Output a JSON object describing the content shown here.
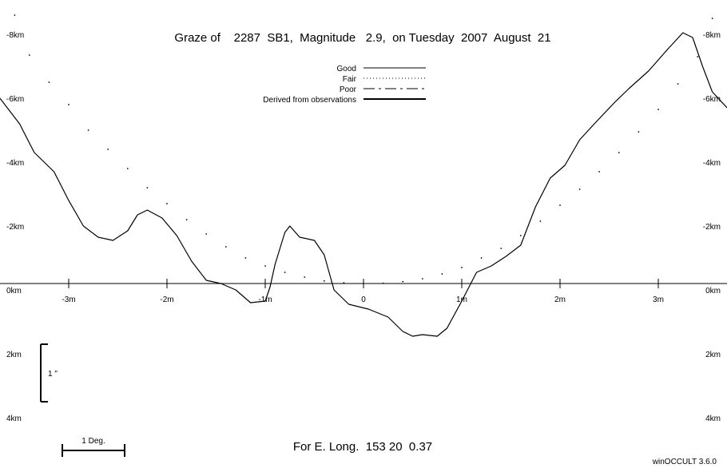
{
  "title": "Graze of    2287  SB1,  Magnitude   2.9,  on Tuesday  2007  August  21",
  "legend": [
    {
      "label": "Good",
      "style": "solid"
    },
    {
      "label": "Fair",
      "style": "dotted"
    },
    {
      "label": "Poor",
      "style": "dashed"
    },
    {
      "label": "Derived from observations",
      "style": "thick"
    }
  ],
  "footer": {
    "longitude": "For E. Long.  153 20  0.37",
    "credit": "winOCCULT 3.6.0"
  },
  "scale": {
    "vertical_label": "1 \"",
    "horizontal_label": "1 Deg."
  },
  "chart_data": {
    "type": "line",
    "xlabel": "",
    "ylabel": "",
    "x_unit": "min",
    "y_unit": "km",
    "xlim": [
      -3.7,
      3.7
    ],
    "ylim": [
      -8.5,
      6
    ],
    "grid": false,
    "y_tick_labels_left": [
      {
        "value": -8,
        "label": "-8km"
      },
      {
        "value": -6,
        "label": "-6km"
      },
      {
        "value": -4,
        "label": "-4km"
      },
      {
        "value": -2,
        "label": "-2km"
      },
      {
        "value": 0,
        "label": "0km"
      },
      {
        "value": 2,
        "label": "2km"
      },
      {
        "value": 4,
        "label": "4km"
      }
    ],
    "y_tick_labels_right": [
      {
        "value": -8,
        "label": "-8km"
      },
      {
        "value": -6,
        "label": "-6km"
      },
      {
        "value": -4,
        "label": "-4km"
      },
      {
        "value": -2,
        "label": "-2km"
      },
      {
        "value": 0,
        "label": "0km"
      },
      {
        "value": 2,
        "label": "2km"
      },
      {
        "value": 4,
        "label": "4km"
      }
    ],
    "x_tick_labels": [
      {
        "value": -3,
        "label": "-3m"
      },
      {
        "value": -2,
        "label": "-2m"
      },
      {
        "value": -1,
        "label": "-1m"
      },
      {
        "value": 0,
        "label": "0"
      },
      {
        "value": 1,
        "label": "1m"
      },
      {
        "value": 2,
        "label": "2m"
      },
      {
        "value": 3,
        "label": "3m"
      }
    ],
    "series": [
      {
        "name": "Fair",
        "style": "dotted",
        "points": [
          [
            -3.55,
            -8.4
          ],
          [
            -3.4,
            -7.15
          ],
          [
            -3.2,
            -6.3
          ],
          [
            -3.0,
            -5.6
          ],
          [
            -2.8,
            -4.8
          ],
          [
            -2.6,
            -4.2
          ],
          [
            -2.4,
            -3.6
          ],
          [
            -2.2,
            -3.0
          ],
          [
            -2.0,
            -2.5
          ],
          [
            -1.8,
            -2.0
          ],
          [
            -1.6,
            -1.55
          ],
          [
            -1.4,
            -1.15
          ],
          [
            -1.2,
            -0.8
          ],
          [
            -1.0,
            -0.55
          ],
          [
            -0.8,
            -0.35
          ],
          [
            -0.6,
            -0.2
          ],
          [
            -0.4,
            -0.08
          ],
          [
            -0.2,
            -0.02
          ],
          [
            0.0,
            0.0
          ],
          [
            0.2,
            -0.01
          ],
          [
            0.4,
            -0.06
          ],
          [
            0.6,
            -0.15
          ],
          [
            0.8,
            -0.3
          ],
          [
            1.0,
            -0.5
          ],
          [
            1.2,
            -0.8
          ],
          [
            1.4,
            -1.1
          ],
          [
            1.6,
            -1.5
          ],
          [
            1.8,
            -1.95
          ],
          [
            2.0,
            -2.45
          ],
          [
            2.2,
            -2.95
          ],
          [
            2.4,
            -3.5
          ],
          [
            2.6,
            -4.1
          ],
          [
            2.8,
            -4.75
          ],
          [
            3.0,
            -5.45
          ],
          [
            3.2,
            -6.25
          ],
          [
            3.4,
            -7.1
          ],
          [
            3.55,
            -8.3
          ]
        ]
      },
      {
        "name": "Derived from observations",
        "style": "solid",
        "points": [
          [
            -3.7,
            -5.8
          ],
          [
            -3.5,
            -5.0
          ],
          [
            -3.35,
            -4.1
          ],
          [
            -3.15,
            -3.5
          ],
          [
            -3.0,
            -2.6
          ],
          [
            -2.85,
            -1.8
          ],
          [
            -2.7,
            -1.45
          ],
          [
            -2.55,
            -1.35
          ],
          [
            -2.4,
            -1.65
          ],
          [
            -2.3,
            -2.15
          ],
          [
            -2.2,
            -2.3
          ],
          [
            -2.05,
            -2.05
          ],
          [
            -1.9,
            -1.5
          ],
          [
            -1.75,
            -0.7
          ],
          [
            -1.6,
            -0.1
          ],
          [
            -1.45,
            0.0
          ],
          [
            -1.3,
            0.2
          ],
          [
            -1.15,
            0.6
          ],
          [
            -1.0,
            0.55
          ],
          [
            -0.95,
            0.1
          ],
          [
            -0.9,
            -0.6
          ],
          [
            -0.8,
            -1.6
          ],
          [
            -0.75,
            -1.8
          ],
          [
            -0.65,
            -1.45
          ],
          [
            -0.5,
            -1.35
          ],
          [
            -0.4,
            -0.9
          ],
          [
            -0.3,
            0.2
          ],
          [
            -0.15,
            0.65
          ],
          [
            0.05,
            0.8
          ],
          [
            0.25,
            1.05
          ],
          [
            0.4,
            1.5
          ],
          [
            0.5,
            1.65
          ],
          [
            0.6,
            1.6
          ],
          [
            0.75,
            1.65
          ],
          [
            0.85,
            1.4
          ],
          [
            1.0,
            0.55
          ],
          [
            1.15,
            -0.35
          ],
          [
            1.3,
            -0.55
          ],
          [
            1.45,
            -0.85
          ],
          [
            1.6,
            -1.2
          ],
          [
            1.75,
            -2.4
          ],
          [
            1.9,
            -3.3
          ],
          [
            2.05,
            -3.7
          ],
          [
            2.2,
            -4.5
          ],
          [
            2.35,
            -5.0
          ],
          [
            2.55,
            -5.65
          ],
          [
            2.7,
            -6.1
          ],
          [
            2.9,
            -6.65
          ],
          [
            3.1,
            -7.35
          ],
          [
            3.25,
            -7.85
          ],
          [
            3.35,
            -7.7
          ],
          [
            3.45,
            -6.8
          ],
          [
            3.55,
            -6.0
          ],
          [
            3.7,
            -5.5
          ]
        ]
      }
    ]
  }
}
